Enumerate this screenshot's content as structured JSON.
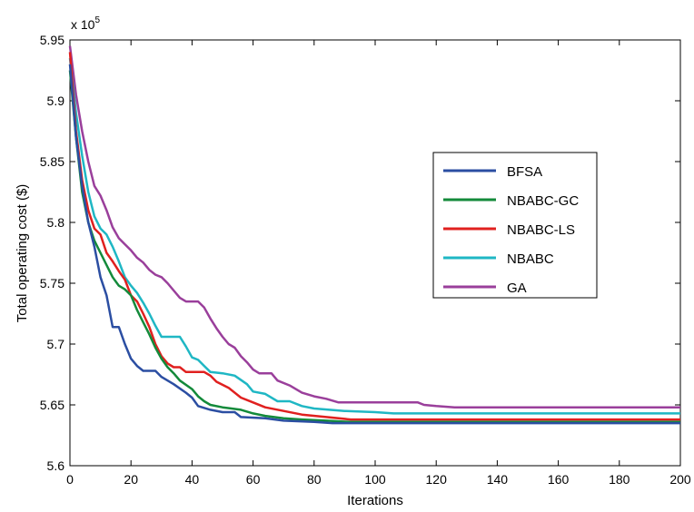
{
  "chart_data": {
    "type": "line",
    "title": "",
    "xlabel": "Iterations",
    "ylabel": "Total operating cost ($)",
    "xlim": [
      0,
      200
    ],
    "ylim": [
      5.6,
      5.95
    ],
    "y_scale_multiplier": "x 10",
    "y_scale_exponent": "5",
    "x_ticks": [
      "0",
      "20",
      "40",
      "60",
      "80",
      "100",
      "120",
      "140",
      "160",
      "180",
      "200"
    ],
    "y_ticks": [
      "5.6",
      "5.65",
      "5.7",
      "5.75",
      "5.8",
      "5.85",
      "5.9",
      "5.95"
    ],
    "grid": false,
    "legend_position": "right",
    "series": [
      {
        "name": "BFSA",
        "color": "#2b4ea2",
        "points": [
          [
            0,
            5.93
          ],
          [
            2,
            5.87
          ],
          [
            4,
            5.83
          ],
          [
            6,
            5.8
          ],
          [
            8,
            5.78
          ],
          [
            10,
            5.755
          ],
          [
            12,
            5.74
          ],
          [
            14,
            5.714
          ],
          [
            16,
            5.714
          ],
          [
            18,
            5.7
          ],
          [
            20,
            5.688
          ],
          [
            22,
            5.682
          ],
          [
            24,
            5.678
          ],
          [
            28,
            5.678
          ],
          [
            30,
            5.673
          ],
          [
            34,
            5.667
          ],
          [
            38,
            5.66
          ],
          [
            40,
            5.656
          ],
          [
            42,
            5.649
          ],
          [
            46,
            5.646
          ],
          [
            50,
            5.644
          ],
          [
            54,
            5.644
          ],
          [
            56,
            5.64
          ],
          [
            64,
            5.639
          ],
          [
            70,
            5.637
          ],
          [
            80,
            5.636
          ],
          [
            86,
            5.635
          ],
          [
            200,
            5.635
          ]
        ]
      },
      {
        "name": "NBABC-GC",
        "color": "#138a3a",
        "points": [
          [
            0,
            5.925
          ],
          [
            2,
            5.87
          ],
          [
            4,
            5.825
          ],
          [
            6,
            5.8
          ],
          [
            8,
            5.785
          ],
          [
            10,
            5.775
          ],
          [
            12,
            5.765
          ],
          [
            14,
            5.755
          ],
          [
            16,
            5.748
          ],
          [
            18,
            5.745
          ],
          [
            20,
            5.74
          ],
          [
            22,
            5.728
          ],
          [
            24,
            5.718
          ],
          [
            26,
            5.708
          ],
          [
            28,
            5.697
          ],
          [
            30,
            5.688
          ],
          [
            32,
            5.681
          ],
          [
            34,
            5.676
          ],
          [
            36,
            5.67
          ],
          [
            40,
            5.663
          ],
          [
            42,
            5.657
          ],
          [
            44,
            5.653
          ],
          [
            46,
            5.65
          ],
          [
            50,
            5.648
          ],
          [
            56,
            5.646
          ],
          [
            60,
            5.643
          ],
          [
            64,
            5.641
          ],
          [
            70,
            5.639
          ],
          [
            76,
            5.638
          ],
          [
            84,
            5.637
          ],
          [
            92,
            5.636
          ],
          [
            200,
            5.636
          ]
        ]
      },
      {
        "name": "NBABC-LS",
        "color": "#e0201f",
        "points": [
          [
            0,
            5.94
          ],
          [
            2,
            5.875
          ],
          [
            4,
            5.835
          ],
          [
            6,
            5.81
          ],
          [
            8,
            5.795
          ],
          [
            10,
            5.79
          ],
          [
            12,
            5.775
          ],
          [
            14,
            5.768
          ],
          [
            16,
            5.76
          ],
          [
            18,
            5.753
          ],
          [
            20,
            5.74
          ],
          [
            22,
            5.735
          ],
          [
            24,
            5.725
          ],
          [
            26,
            5.714
          ],
          [
            28,
            5.7
          ],
          [
            30,
            5.69
          ],
          [
            32,
            5.684
          ],
          [
            34,
            5.681
          ],
          [
            36,
            5.681
          ],
          [
            38,
            5.677
          ],
          [
            44,
            5.677
          ],
          [
            46,
            5.674
          ],
          [
            48,
            5.669
          ],
          [
            52,
            5.664
          ],
          [
            56,
            5.656
          ],
          [
            60,
            5.652
          ],
          [
            64,
            5.648
          ],
          [
            70,
            5.645
          ],
          [
            76,
            5.642
          ],
          [
            84,
            5.64
          ],
          [
            92,
            5.638
          ],
          [
            100,
            5.638
          ],
          [
            200,
            5.638
          ]
        ]
      },
      {
        "name": "NBABC",
        "color": "#1fb7c4",
        "points": [
          [
            0,
            5.935
          ],
          [
            2,
            5.89
          ],
          [
            4,
            5.855
          ],
          [
            6,
            5.825
          ],
          [
            8,
            5.805
          ],
          [
            10,
            5.795
          ],
          [
            12,
            5.79
          ],
          [
            14,
            5.78
          ],
          [
            16,
            5.768
          ],
          [
            18,
            5.755
          ],
          [
            20,
            5.748
          ],
          [
            22,
            5.742
          ],
          [
            24,
            5.734
          ],
          [
            26,
            5.725
          ],
          [
            28,
            5.715
          ],
          [
            30,
            5.706
          ],
          [
            36,
            5.706
          ],
          [
            38,
            5.698
          ],
          [
            40,
            5.689
          ],
          [
            42,
            5.687
          ],
          [
            44,
            5.682
          ],
          [
            46,
            5.677
          ],
          [
            50,
            5.676
          ],
          [
            54,
            5.674
          ],
          [
            58,
            5.667
          ],
          [
            60,
            5.661
          ],
          [
            64,
            5.659
          ],
          [
            68,
            5.653
          ],
          [
            72,
            5.653
          ],
          [
            76,
            5.649
          ],
          [
            80,
            5.647
          ],
          [
            90,
            5.645
          ],
          [
            100,
            5.644
          ],
          [
            106,
            5.643
          ],
          [
            200,
            5.643
          ]
        ]
      },
      {
        "name": "GA",
        "color": "#9a3f9b",
        "points": [
          [
            0,
            5.945
          ],
          [
            2,
            5.905
          ],
          [
            4,
            5.875
          ],
          [
            6,
            5.85
          ],
          [
            8,
            5.83
          ],
          [
            10,
            5.822
          ],
          [
            12,
            5.81
          ],
          [
            14,
            5.796
          ],
          [
            16,
            5.787
          ],
          [
            18,
            5.782
          ],
          [
            20,
            5.777
          ],
          [
            22,
            5.771
          ],
          [
            24,
            5.767
          ],
          [
            26,
            5.761
          ],
          [
            28,
            5.757
          ],
          [
            30,
            5.755
          ],
          [
            32,
            5.75
          ],
          [
            34,
            5.744
          ],
          [
            36,
            5.738
          ],
          [
            38,
            5.735
          ],
          [
            42,
            5.735
          ],
          [
            44,
            5.73
          ],
          [
            46,
            5.721
          ],
          [
            48,
            5.713
          ],
          [
            50,
            5.706
          ],
          [
            52,
            5.7
          ],
          [
            54,
            5.697
          ],
          [
            56,
            5.69
          ],
          [
            58,
            5.685
          ],
          [
            60,
            5.679
          ],
          [
            62,
            5.676
          ],
          [
            66,
            5.676
          ],
          [
            68,
            5.67
          ],
          [
            72,
            5.666
          ],
          [
            76,
            5.66
          ],
          [
            80,
            5.657
          ],
          [
            84,
            5.655
          ],
          [
            88,
            5.652
          ],
          [
            114,
            5.652
          ],
          [
            116,
            5.65
          ],
          [
            120,
            5.649
          ],
          [
            126,
            5.648
          ],
          [
            200,
            5.648
          ]
        ]
      }
    ]
  }
}
